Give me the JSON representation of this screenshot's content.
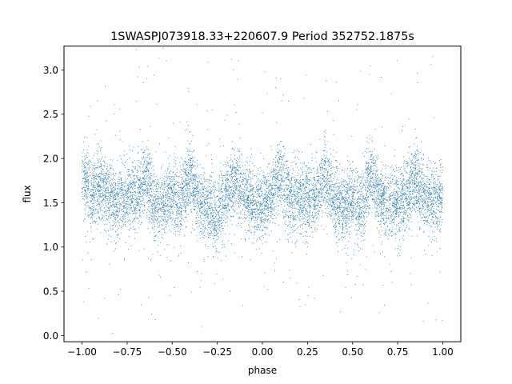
{
  "chart_data": {
    "type": "scatter",
    "title": "1SWASPJ073918.33+220607.9 Period 352752.1875s",
    "xlabel": "phase",
    "ylabel": "flux",
    "xlim": [
      -1.1,
      1.1
    ],
    "ylim": [
      -0.07,
      3.27
    ],
    "xticks": [
      -1.0,
      -0.75,
      -0.5,
      -0.25,
      0.0,
      0.25,
      0.5,
      0.75,
      1.0
    ],
    "xtick_labels": [
      "−1.00",
      "−0.75",
      "−0.50",
      "−0.25",
      "0.00",
      "0.25",
      "0.50",
      "0.75",
      "1.00"
    ],
    "yticks": [
      0.0,
      0.5,
      1.0,
      1.5,
      2.0,
      2.5,
      3.0
    ],
    "ytick_labels": [
      "0.0",
      "0.5",
      "1.0",
      "1.5",
      "2.0",
      "2.5",
      "3.0"
    ],
    "grid": false,
    "marker_color": "#1f77b4",
    "series_profile": {
      "phase": [
        -1.0,
        -0.95,
        -0.9,
        -0.85,
        -0.8,
        -0.75,
        -0.7,
        -0.65,
        -0.6,
        -0.55,
        -0.5,
        -0.45,
        -0.4,
        -0.35,
        -0.3,
        -0.25,
        -0.2,
        -0.15,
        -0.1,
        -0.05,
        0.0,
        0.05,
        0.1,
        0.15,
        0.2,
        0.25,
        0.3,
        0.35,
        0.4,
        0.45,
        0.5,
        0.55,
        0.6,
        0.65,
        0.7,
        0.75,
        0.8,
        0.85,
        0.9,
        0.95,
        1.0
      ],
      "median_flux": [
        1.85,
        1.55,
        1.7,
        1.55,
        1.5,
        1.6,
        1.55,
        1.8,
        1.5,
        1.5,
        1.55,
        1.5,
        1.85,
        1.5,
        1.45,
        1.35,
        1.6,
        1.75,
        1.6,
        1.5,
        1.5,
        1.6,
        1.8,
        1.55,
        1.55,
        1.55,
        1.55,
        1.85,
        1.5,
        1.45,
        1.55,
        1.45,
        1.85,
        1.55,
        1.5,
        1.45,
        1.6,
        1.75,
        1.55,
        1.5,
        1.55
      ]
    }
  }
}
